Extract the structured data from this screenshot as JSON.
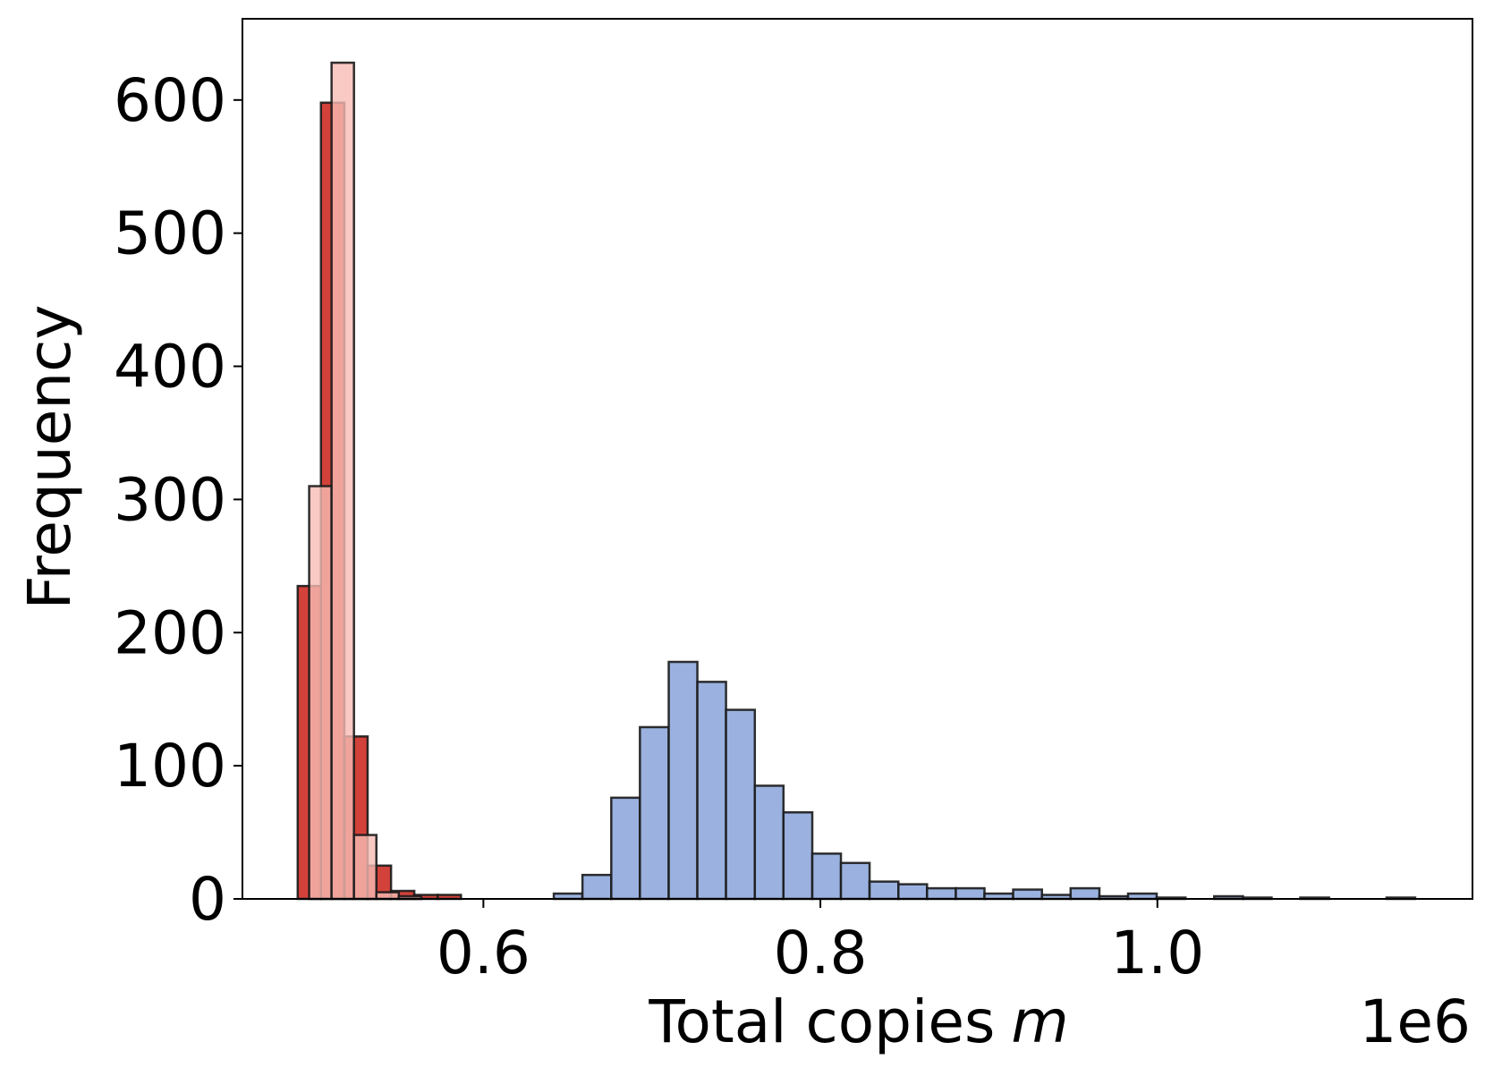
{
  "chart_data": {
    "type": "histogram",
    "x_label": "Total copies",
    "x_label_var": "m",
    "x_offset": "1e6",
    "y_label": "Frequency",
    "xlim": [
      0.457,
      1.187
    ],
    "xticks": [
      0.6,
      0.8,
      {
        "value": 1.0,
        "label": "1.0"
      }
    ],
    "ylim": [
      0,
      661
    ],
    "yticks": [
      0,
      100,
      200,
      300,
      400,
      500,
      600
    ],
    "series": [
      {
        "color": "#d0382f",
        "opacity": 0.95,
        "bins": [
          0.4898,
          0.5036,
          0.5175,
          0.5313,
          0.5452,
          0.559,
          0.5729,
          0.5867
        ],
        "values": [
          235,
          598,
          122,
          25,
          6,
          3,
          3
        ]
      },
      {
        "color": "#f7bcb4",
        "opacity": 0.8,
        "bins": [
          0.4966,
          0.5099,
          0.5232,
          0.5365,
          0.5498,
          0.5631
        ],
        "values": [
          310,
          628,
          48,
          5,
          2
        ]
      },
      {
        "color": "#9bb2e0",
        "opacity": 1,
        "bins": [
          0.6418,
          0.6588,
          0.6759,
          0.6929,
          0.71,
          0.727,
          0.744,
          0.7611,
          0.7781,
          0.7952,
          0.8122,
          0.8292,
          0.8463,
          0.8633,
          0.8804,
          0.8974,
          0.9144,
          0.9315,
          0.9485,
          0.9656,
          0.9826,
          0.9996,
          1.0167,
          1.0337,
          1.0508,
          1.0678,
          1.0848,
          1.1019,
          1.1189,
          1.136,
          1.153
        ],
        "values": [
          4,
          18,
          76,
          129,
          178,
          163,
          142,
          85,
          65,
          34,
          27,
          13,
          11,
          8,
          8,
          4,
          7,
          3,
          8,
          2,
          4,
          1,
          0,
          2,
          1,
          0,
          1,
          0,
          0,
          1
        ]
      }
    ]
  }
}
